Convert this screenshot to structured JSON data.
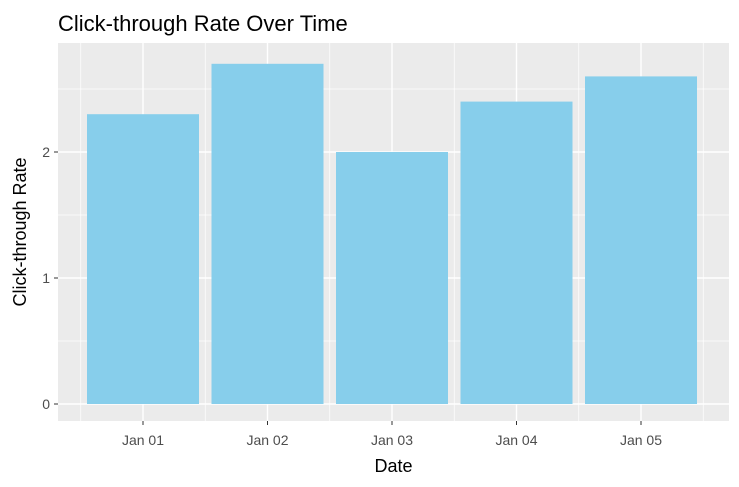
{
  "chart_data": {
    "type": "bar",
    "title": "Click-through Rate Over Time",
    "xlabel": "Date",
    "ylabel": "Click-through Rate",
    "categories": [
      "Jan 01",
      "Jan 02",
      "Jan 03",
      "Jan 04",
      "Jan 05"
    ],
    "values": [
      2.3,
      2.7,
      2.0,
      2.4,
      2.6
    ],
    "ylim": [
      -0.1,
      2.8
    ],
    "yticks": [
      "0",
      "1",
      "2"
    ],
    "grid": true,
    "legend": "none",
    "colors": {
      "bar": "#87CEEB",
      "panel": "#EBEBEB",
      "grid": "#FFFFFF",
      "tick": "#333333"
    }
  }
}
